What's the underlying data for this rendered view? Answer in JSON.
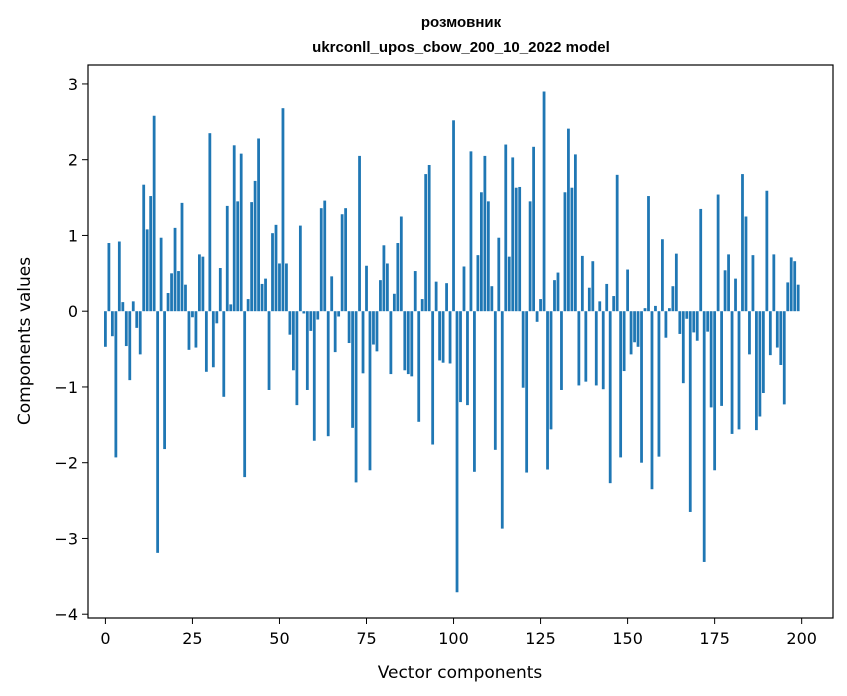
{
  "chart_data": {
    "type": "bar",
    "title": "розмовник",
    "subtitle": "ukrconll_upos_cbow_200_10_2022 model",
    "xlabel": "Vector components",
    "ylabel": "Components values",
    "xlim": [
      -5,
      209
    ],
    "ylim": [
      -4.05,
      3.25
    ],
    "xticks": [
      0,
      25,
      50,
      75,
      100,
      125,
      150,
      175,
      200
    ],
    "yticks": [
      -4,
      -3,
      -2,
      -1,
      0,
      1,
      2,
      3
    ],
    "bar_color": "#1f77b4",
    "grid": false,
    "legend": "none",
    "x": [
      0,
      1,
      2,
      3,
      4,
      5,
      6,
      7,
      8,
      9,
      10,
      11,
      12,
      13,
      14,
      15,
      16,
      17,
      18,
      19,
      20,
      21,
      22,
      23,
      24,
      25,
      26,
      27,
      28,
      29,
      30,
      31,
      32,
      33,
      34,
      35,
      36,
      37,
      38,
      39,
      40,
      41,
      42,
      43,
      44,
      45,
      46,
      47,
      48,
      49,
      50,
      51,
      52,
      53,
      54,
      55,
      56,
      57,
      58,
      59,
      60,
      61,
      62,
      63,
      64,
      65,
      66,
      67,
      68,
      69,
      70,
      71,
      72,
      73,
      74,
      75,
      76,
      77,
      78,
      79,
      80,
      81,
      82,
      83,
      84,
      85,
      86,
      87,
      88,
      89,
      90,
      91,
      92,
      93,
      94,
      95,
      96,
      97,
      98,
      99,
      100,
      101,
      102,
      103,
      104,
      105,
      106,
      107,
      108,
      109,
      110,
      111,
      112,
      113,
      114,
      115,
      116,
      117,
      118,
      119,
      120,
      121,
      122,
      123,
      124,
      125,
      126,
      127,
      128,
      129,
      130,
      131,
      132,
      133,
      134,
      135,
      136,
      137,
      138,
      139,
      140,
      141,
      142,
      143,
      144,
      145,
      146,
      147,
      148,
      149,
      150,
      151,
      152,
      153,
      154,
      155,
      156,
      157,
      158,
      159,
      160,
      161,
      162,
      163,
      164,
      165,
      166,
      167,
      168,
      169,
      170,
      171,
      172,
      173,
      174,
      175,
      176,
      177,
      178,
      179,
      180,
      181,
      182,
      183,
      184,
      185,
      186,
      187,
      188,
      189,
      190,
      191,
      192,
      193,
      194,
      195,
      196,
      197,
      198,
      199
    ],
    "values": [
      -0.47,
      0.9,
      -0.33,
      -1.93,
      0.92,
      0.12,
      -0.46,
      -0.91,
      0.13,
      -0.22,
      -0.57,
      1.67,
      1.08,
      1.52,
      2.58,
      -3.19,
      0.97,
      -1.82,
      0.24,
      0.5,
      1.1,
      0.53,
      1.43,
      0.35,
      -0.51,
      -0.08,
      -0.48,
      0.75,
      0.72,
      -0.8,
      2.35,
      -0.74,
      -0.16,
      0.57,
      -1.13,
      1.39,
      0.09,
      2.19,
      1.45,
      2.08,
      -2.19,
      0.16,
      1.44,
      1.72,
      2.28,
      0.36,
      0.43,
      -1.04,
      1.03,
      1.14,
      0.63,
      2.68,
      0.63,
      -0.31,
      -0.78,
      -1.24,
      1.13,
      -0.03,
      -1.04,
      -0.26,
      -1.71,
      -0.11,
      1.36,
      1.46,
      -1.65,
      0.46,
      -0.54,
      -0.07,
      1.28,
      1.36,
      -0.42,
      -1.54,
      -2.26,
      2.05,
      -0.82,
      0.6,
      -2.1,
      -0.44,
      -0.53,
      0.41,
      0.87,
      0.63,
      -0.83,
      0.23,
      0.9,
      1.25,
      -0.78,
      -0.83,
      -0.86,
      0.53,
      -1.46,
      0.16,
      1.81,
      1.93,
      -1.76,
      0.39,
      -0.65,
      -0.68,
      0.37,
      -0.69,
      2.52,
      -3.71,
      -1.2,
      0.59,
      -1.24,
      2.11,
      -2.12,
      0.74,
      1.57,
      2.05,
      1.45,
      0.33,
      -1.83,
      0.97,
      -2.87,
      2.2,
      0.72,
      2.03,
      1.63,
      1.64,
      -1.01,
      -2.13,
      1.45,
      2.17,
      -0.14,
      0.16,
      2.9,
      -2.09,
      -1.56,
      0.41,
      0.51,
      -1.04,
      1.57,
      2.41,
      1.63,
      2.07,
      -0.98,
      0.73,
      -0.93,
      0.31,
      0.66,
      -0.98,
      0.13,
      -1.03,
      0.36,
      -2.27,
      0.2,
      1.8,
      -1.93,
      -0.79,
      0.55,
      -0.57,
      -0.41,
      -0.47,
      -2.0,
      0.04,
      1.52,
      -2.35,
      0.07,
      -1.92,
      0.95,
      -0.35,
      0.04,
      0.33,
      0.76,
      -0.3,
      -0.95,
      -0.1,
      -2.65,
      -0.28,
      -0.39,
      1.35,
      -3.31,
      -0.27,
      -1.27,
      -2.1,
      1.54,
      -1.25,
      0.54,
      0.75,
      -1.62,
      0.43,
      -1.56,
      1.81,
      1.25,
      -0.57,
      0.74,
      -1.57,
      -1.39,
      -1.08,
      1.59,
      -0.58,
      0.75,
      -0.48,
      -0.71,
      -1.23,
      0.38,
      0.71,
      0.66,
      0.35
    ]
  }
}
